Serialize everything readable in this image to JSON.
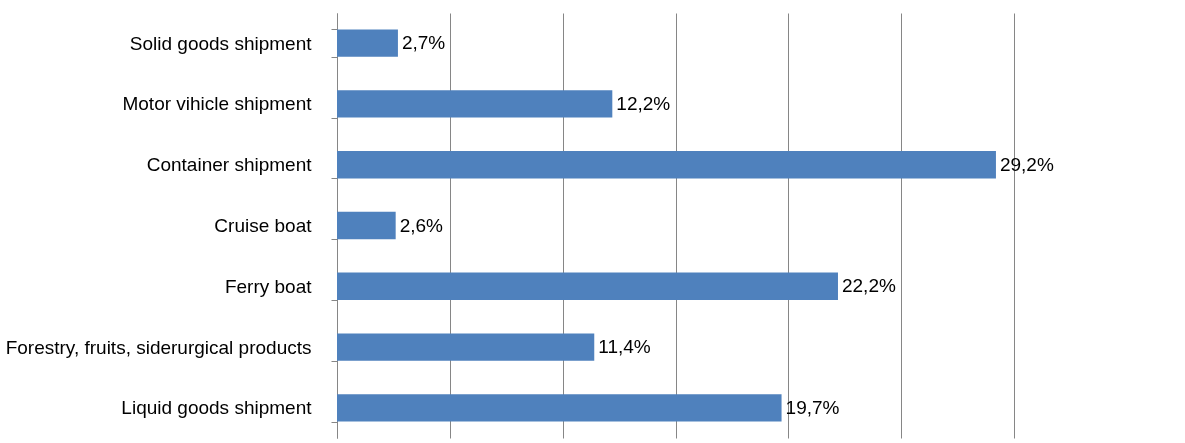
{
  "chart_data": {
    "type": "bar",
    "orientation": "horizontal",
    "categories": [
      "Solid goods shipment",
      "Motor vihicle shipment",
      "Container shipment",
      "Cruise boat",
      "Ferry boat",
      "Forestry, fruits, siderurgical products",
      "Liquid goods shipment"
    ],
    "values": [
      2.7,
      12.2,
      29.2,
      2.6,
      22.2,
      11.4,
      19.7
    ],
    "value_labels": [
      "2,7%",
      "12,2%",
      "29,2%",
      "2,6%",
      "22,2%",
      "11,4%",
      "19,7%"
    ],
    "color": "#4f81bd",
    "xlim": [
      0,
      30
    ],
    "xticks": [
      {
        "value": 0,
        "label": null
      },
      {
        "value": 5,
        "label": null
      },
      {
        "value": 10,
        "label": null
      },
      {
        "value": 15,
        "label": null
      },
      {
        "value": 20,
        "label": null
      },
      {
        "value": 25,
        "label": null
      },
      {
        "value": 30,
        "label": null
      }
    ],
    "grid": "x",
    "tick_labels": "y"
  }
}
